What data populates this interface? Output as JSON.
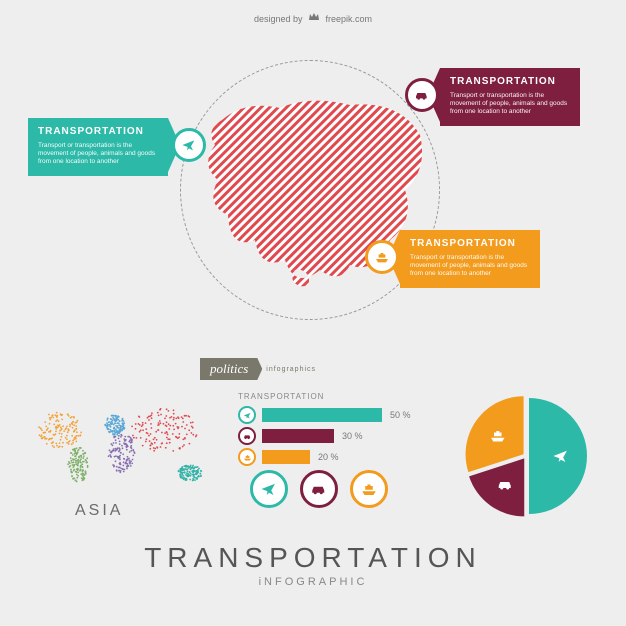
{
  "colors": {
    "background": "#eeeeee",
    "teal": "#2cb9a8",
    "maroon": "#7e1f3f",
    "orange": "#f29b1d",
    "asia_stripe": "#e04a4f",
    "text_grey": "#777777",
    "dark_grey": "#555555",
    "olive": "#7a786a",
    "map_purple": "#8a6fb0",
    "map_blue": "#5aa7d6",
    "map_green": "#7fb069",
    "map_teal": "#36b3a8",
    "map_orange": "#f2a23a"
  },
  "credit": {
    "prefix": "designed by",
    "site": "freepik.com"
  },
  "hero": {
    "callouts": [
      {
        "id": "teal",
        "title": "TRANSPORTATION",
        "body": "Transport or transportation is the movement of people, animals and goods from one location to another",
        "icon": "plane"
      },
      {
        "id": "maroon",
        "title": "TRANSPORTATION",
        "body": "Transport or transportation is the movement of people, animals and goods from one location to another",
        "icon": "car"
      },
      {
        "id": "orange",
        "title": "TRANSPORTATION",
        "body": "Transport or transportation is the movement of people, animals and goods from one location to another",
        "icon": "ship"
      }
    ]
  },
  "politics": {
    "label": "politics",
    "sub": "infographics"
  },
  "region_label": "ASIA",
  "bars": {
    "title": "TRANSPORTATION",
    "rows": [
      {
        "icon": "plane",
        "color_key": "teal",
        "pct": 50,
        "label": "50 %"
      },
      {
        "icon": "car",
        "color_key": "maroon",
        "pct": 30,
        "label": "30 %"
      },
      {
        "icon": "ship",
        "color_key": "orange",
        "pct": 20,
        "label": "20 %"
      }
    ],
    "bar_max_width": 120
  },
  "icon_trio": [
    {
      "icon": "plane",
      "color_key": "teal"
    },
    {
      "icon": "car",
      "color_key": "maroon"
    },
    {
      "icon": "ship",
      "color_key": "orange"
    }
  ],
  "pie": {
    "type": "pie",
    "slices": [
      {
        "icon": "plane",
        "color_key": "teal",
        "value": 50
      },
      {
        "icon": "car",
        "color_key": "maroon",
        "value": 20
      },
      {
        "icon": "ship",
        "color_key": "orange",
        "value": 30
      }
    ]
  },
  "footer": {
    "title": "TRANSPORTATION",
    "subtitle": "iNFOGRAPHIC",
    "title_color": "#555555",
    "subtitle_color": "#888888"
  }
}
